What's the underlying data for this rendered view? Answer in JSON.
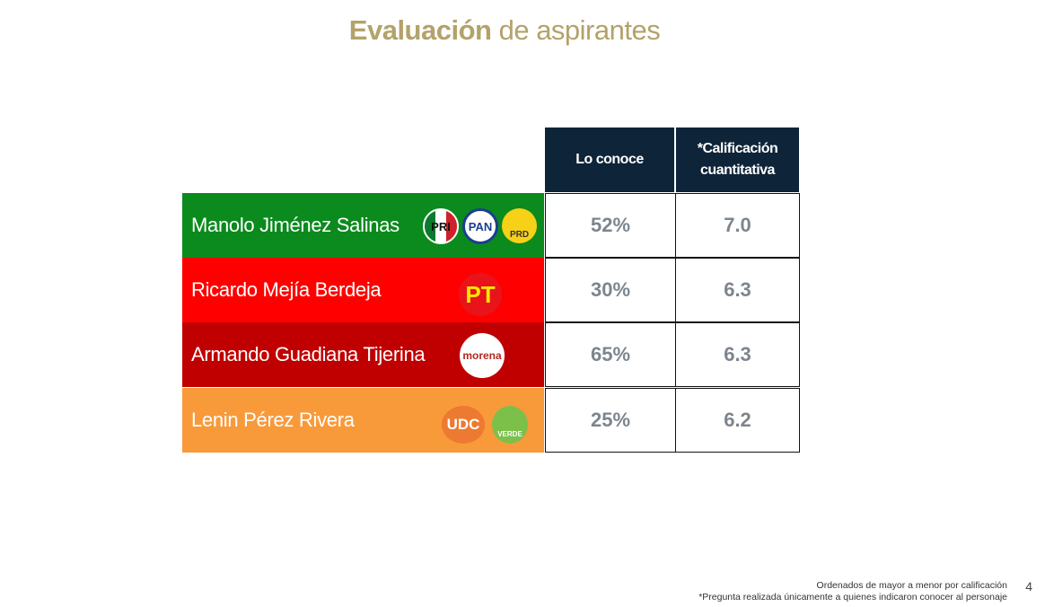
{
  "title": {
    "bold": "Evaluación",
    "rest": "de aspirantes"
  },
  "table": {
    "headers": [
      "Lo conoce",
      "*Calificación cuantitativa"
    ],
    "rows": [
      {
        "name": "Manolo Jiménez Salinas",
        "color": "#0b8a1d",
        "parties": [
          "PRI",
          "PAN",
          "PRD"
        ],
        "conoce": "52%",
        "calificacion": "7.0"
      },
      {
        "name": "Ricardo Mejía Berdeja",
        "color": "#ff0000",
        "parties": [
          "PT"
        ],
        "conoce": "30%",
        "calificacion": "6.3"
      },
      {
        "name": "Armando Guadiana Tijerina",
        "color": "#c00000",
        "parties": [
          "morena"
        ],
        "conoce": "65%",
        "calificacion": "6.3"
      },
      {
        "name": "Lenin Pérez Rivera",
        "color": "#f89a3a",
        "parties": [
          "UDC",
          "VERDE"
        ],
        "conoce": "25%",
        "calificacion": "6.2"
      }
    ]
  },
  "notes": [
    "Ordenados de mayor a menor por calificación",
    "*Pregunta realizada únicamente a quienes indicaron conocer al personaje"
  ],
  "page_number": "4"
}
